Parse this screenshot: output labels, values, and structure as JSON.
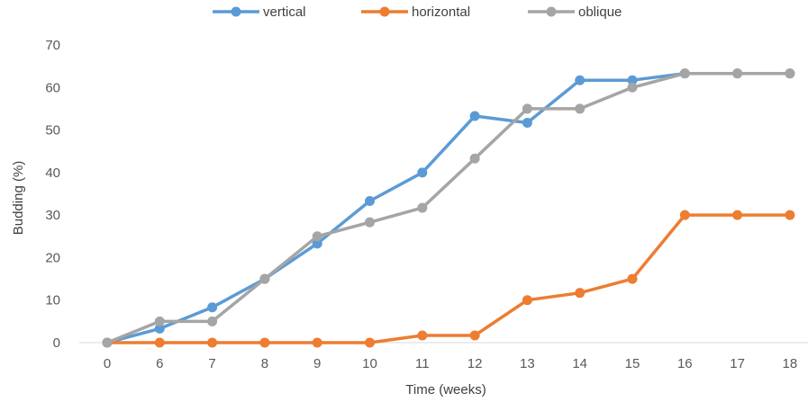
{
  "chart_data": {
    "type": "line",
    "title": "",
    "xlabel": "Time  (weeks)",
    "ylabel": "Budding (%)",
    "categories": [
      "0",
      "6",
      "7",
      "8",
      "9",
      "10",
      "11",
      "12",
      "13",
      "14",
      "15",
      "16",
      "17",
      "18"
    ],
    "ylim": [
      0,
      70
    ],
    "yticks": [
      0,
      10,
      20,
      30,
      40,
      50,
      60,
      70
    ],
    "grid": false,
    "legend_position": "top",
    "series": [
      {
        "name": "vertical",
        "color": "#5B9BD5",
        "values": [
          0,
          3.3,
          8.3,
          15,
          23.3,
          33.3,
          40,
          53.3,
          51.7,
          61.7,
          61.7,
          63.3,
          63.3,
          63.3
        ]
      },
      {
        "name": "horizontal",
        "color": "#ED7D31",
        "values": [
          0,
          0,
          0,
          0,
          0,
          0,
          1.7,
          1.7,
          10,
          11.7,
          15,
          30,
          30,
          30
        ]
      },
      {
        "name": "oblique",
        "color": "#A5A5A5",
        "values": [
          0,
          5,
          5,
          15,
          25,
          28.3,
          31.7,
          43.3,
          55,
          55,
          60,
          63.3,
          63.3,
          63.3
        ]
      }
    ]
  }
}
